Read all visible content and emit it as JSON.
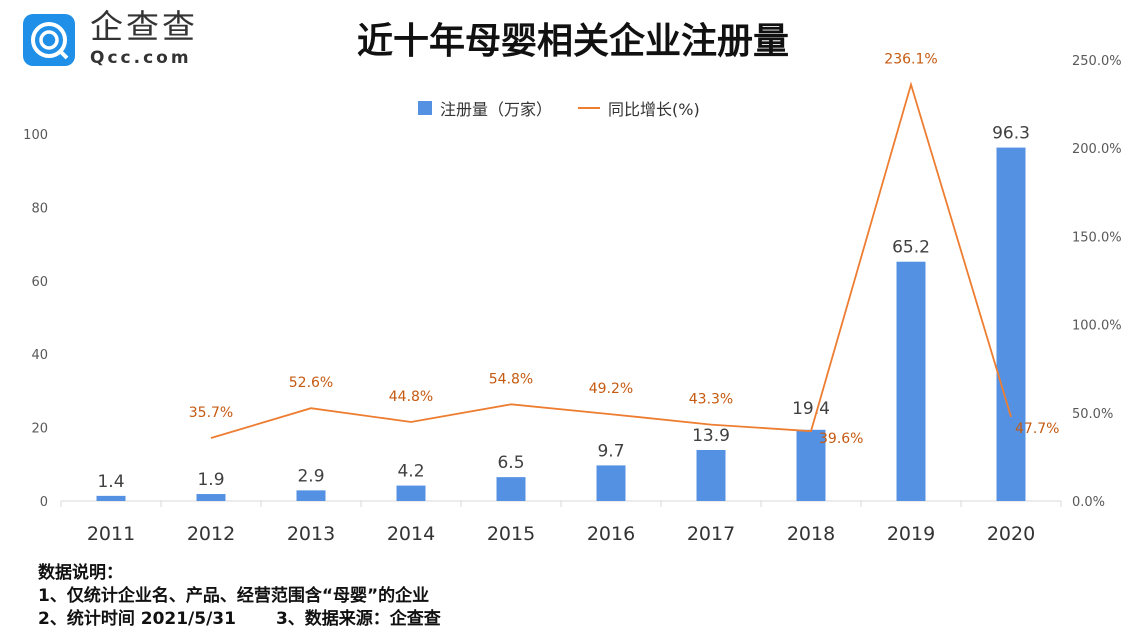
{
  "brand": {
    "name_cn": "企查查",
    "name_en": "Qcc.com"
  },
  "chart_data": {
    "type": "bar+line",
    "title": "近十年母婴相关企业注册量",
    "categories": [
      "2011",
      "2012",
      "2013",
      "2014",
      "2015",
      "2016",
      "2017",
      "2018",
      "2019",
      "2020"
    ],
    "series": [
      {
        "name": "注册量（万家）",
        "type": "bar",
        "axis": "left",
        "color": "#5591e3",
        "values": [
          1.4,
          1.9,
          2.9,
          4.2,
          6.5,
          9.7,
          13.9,
          19.4,
          65.2,
          96.3
        ],
        "labels": [
          "1.4",
          "1.9",
          "2.9",
          "4.2",
          "6.5",
          "9.7",
          "13.9",
          "19.4",
          "65.2",
          "96.3"
        ]
      },
      {
        "name": "同比增长(%)",
        "type": "line",
        "axis": "right",
        "color": "#ed7d31",
        "values": [
          null,
          35.7,
          52.6,
          44.8,
          54.8,
          49.2,
          43.3,
          39.6,
          236.1,
          47.7
        ],
        "labels": [
          "",
          "35.7%",
          "52.6%",
          "44.8%",
          "54.8%",
          "49.2%",
          "43.3%",
          "39.6%",
          "236.1%",
          "47.7%"
        ]
      }
    ],
    "left_axis": {
      "ylim": [
        0,
        100
      ],
      "ticks": [
        "0",
        "20",
        "40",
        "60",
        "80",
        "100"
      ]
    },
    "right_axis": {
      "ylim": [
        0,
        250
      ],
      "ticks": [
        "0.0%",
        "50.0%",
        "100.0%",
        "150.0%",
        "200.0%",
        "250.0%"
      ]
    },
    "grid": false,
    "legend": "top-center"
  },
  "notes": {
    "heading": "数据说明：",
    "line1": "1、仅统计企业名、产品、经营范围含“母婴”的企业",
    "line2a": "2、统计时间 2021/5/31",
    "line2b": "3、数据来源：企查查"
  }
}
